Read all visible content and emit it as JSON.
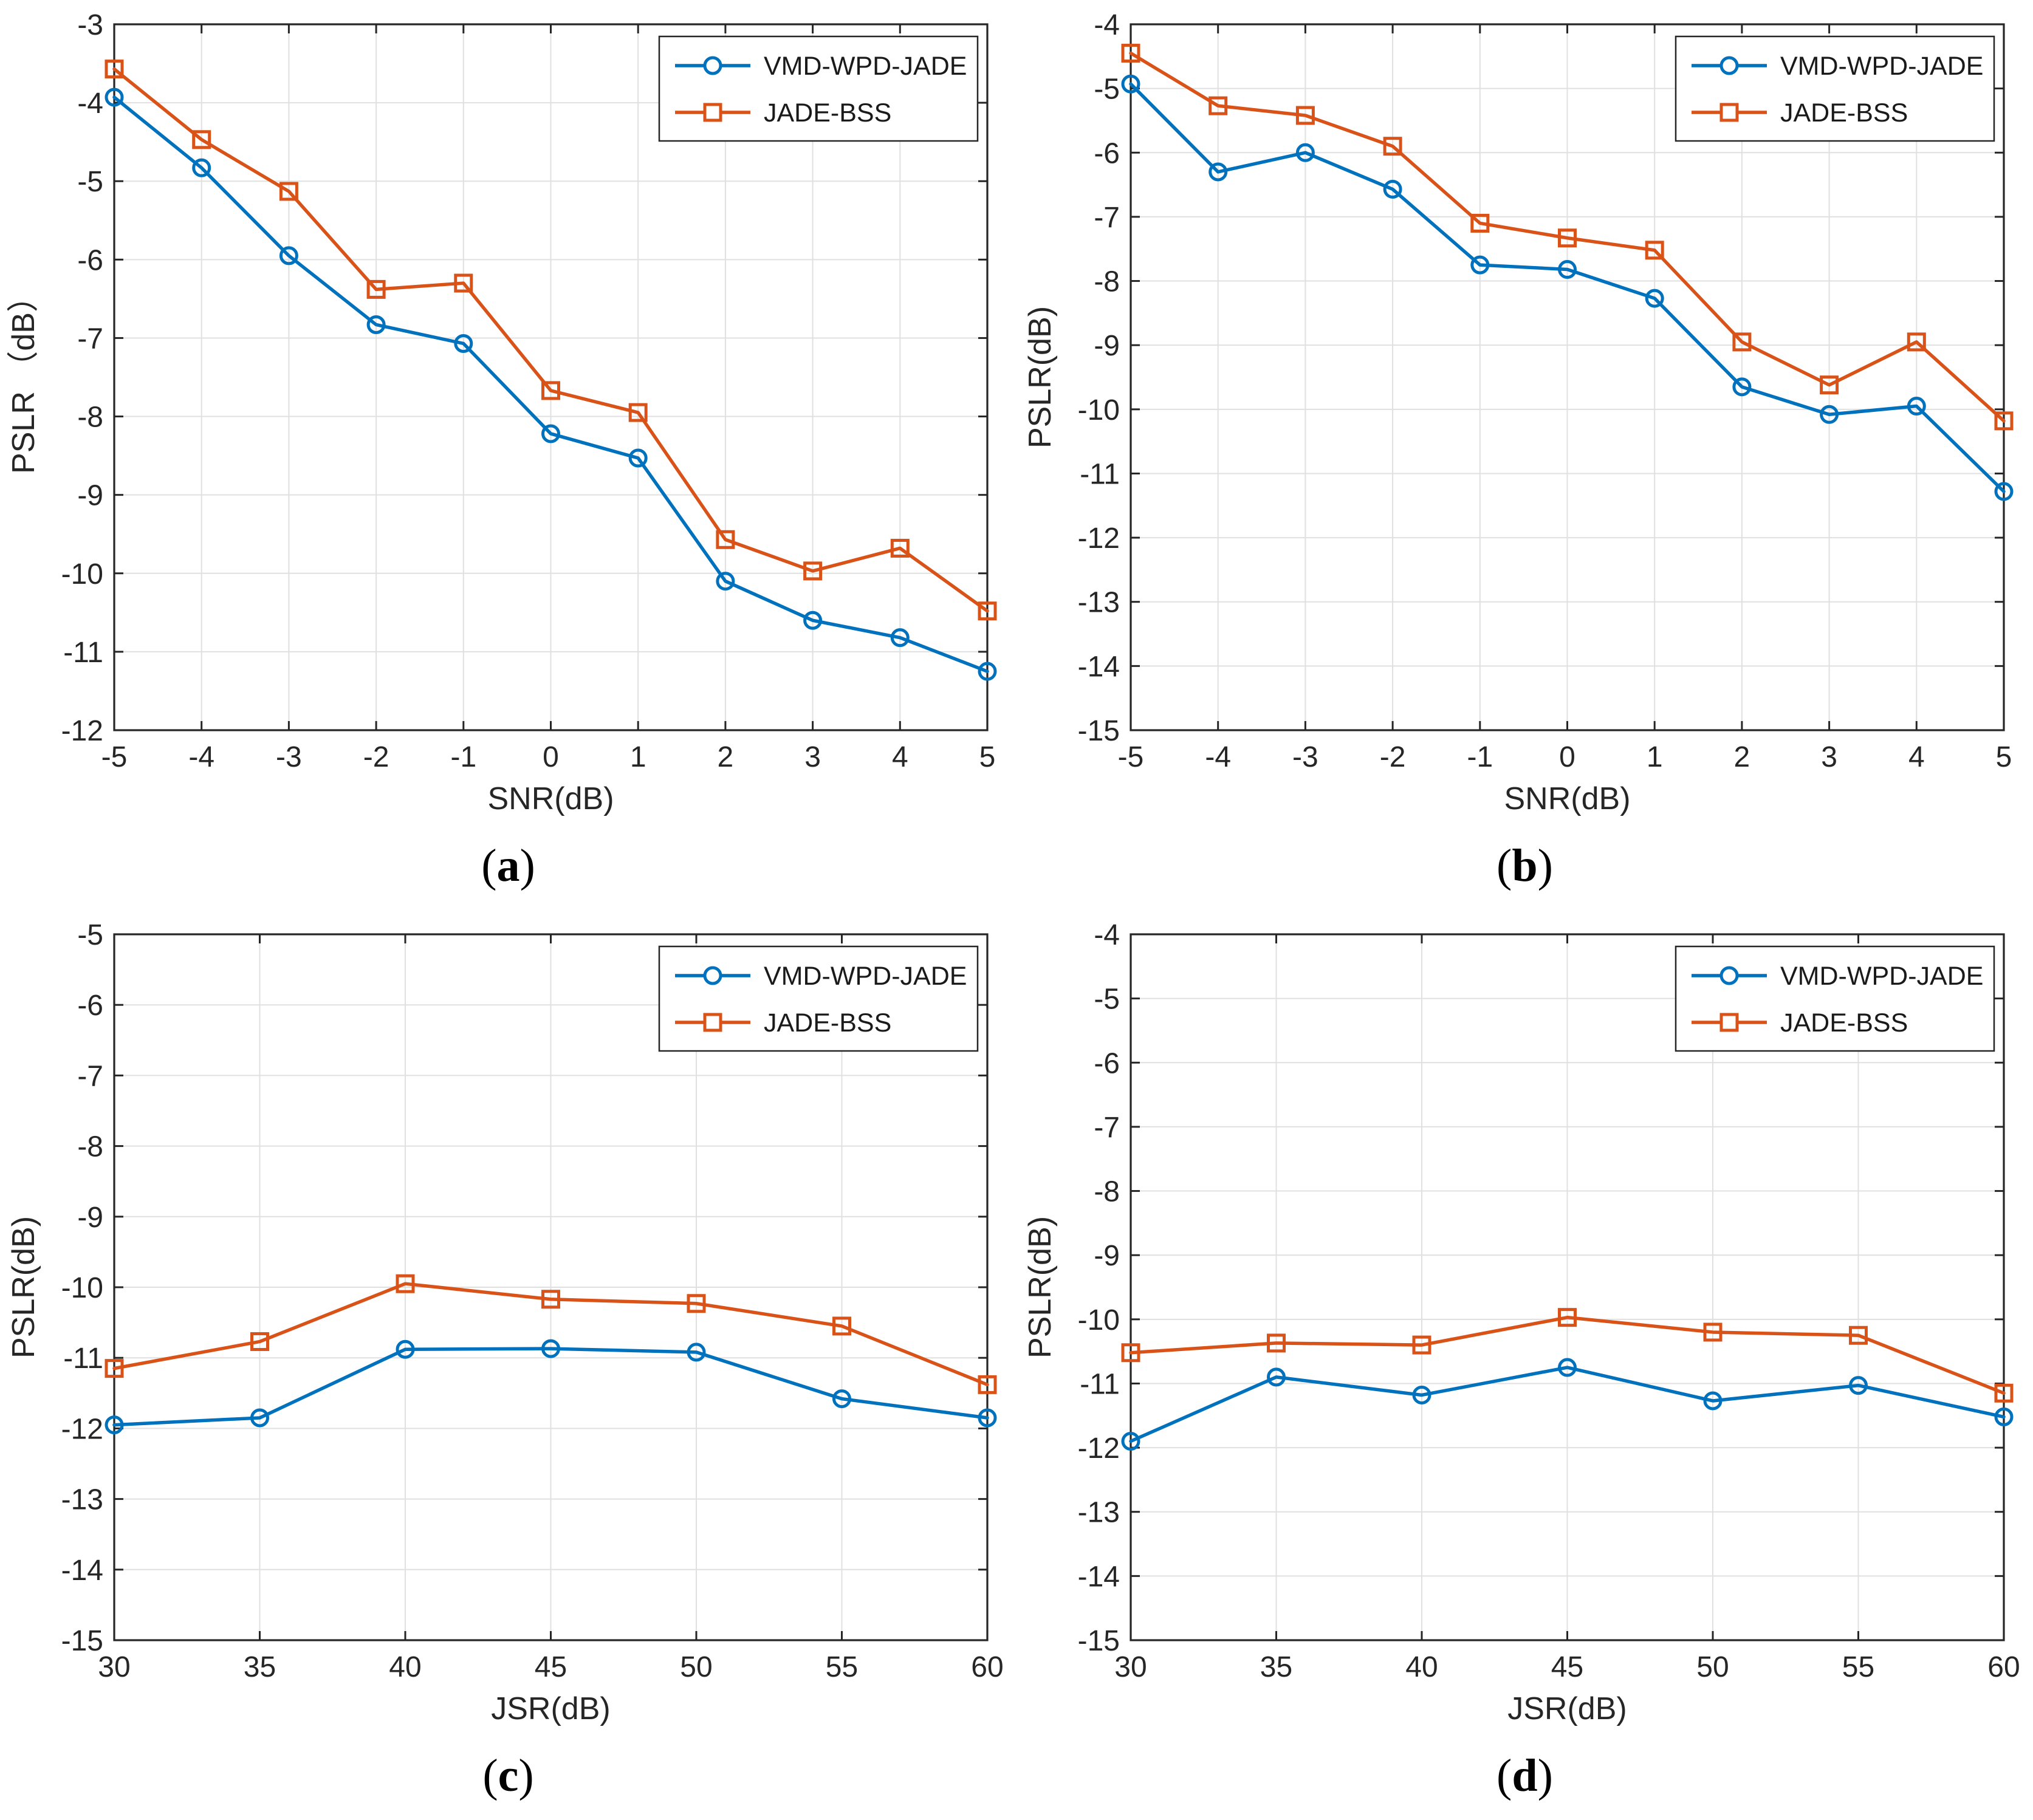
{
  "figure": {
    "background": "#ffffff",
    "axis_color": "#262626",
    "grid_color": "#e0e0e0",
    "tick_color": "#262626",
    "legend_text_color": "#1a1a1a",
    "series_palette": {
      "vmd_blue": "#0072BD",
      "jade_orange": "#D95319"
    }
  },
  "chart_data": [
    {
      "type": "line",
      "caption_open": "(",
      "caption_letter": "a",
      "caption_close": ")",
      "xlabel": "SNR(dB)",
      "ylabel": "PSLR （dB）",
      "grid": true,
      "legend_position": "top-right",
      "xlim": [
        -5,
        5
      ],
      "ylim": [
        -12,
        -3
      ],
      "xticks": [
        -5,
        -4,
        -3,
        -2,
        -1,
        0,
        1,
        2,
        3,
        4,
        5
      ],
      "yticks": [
        -12,
        -11,
        -10,
        -9,
        -8,
        -7,
        -6,
        -5,
        -4,
        -3
      ],
      "x": [
        -5,
        -4,
        -3,
        -2,
        -1,
        0,
        1,
        2,
        3,
        4,
        5
      ],
      "series": [
        {
          "name": "VMD-WPD-JADE",
          "color": "#0072BD",
          "marker": "circle",
          "values": [
            -3.93,
            -4.83,
            -5.95,
            -6.83,
            -7.07,
            -8.22,
            -8.53,
            -10.1,
            -10.6,
            -10.82,
            -11.25
          ]
        },
        {
          "name": "JADE-BSS",
          "color": "#D95319",
          "marker": "square",
          "values": [
            -3.57,
            -4.47,
            -5.13,
            -6.38,
            -6.3,
            -7.67,
            -7.95,
            -9.57,
            -9.97,
            -9.68,
            -10.48
          ]
        }
      ]
    },
    {
      "type": "line",
      "caption_open": "(",
      "caption_letter": "b",
      "caption_close": ")",
      "xlabel": "SNR(dB)",
      "ylabel": "PSLR(dB)",
      "grid": true,
      "legend_position": "top-right",
      "xlim": [
        -5,
        5
      ],
      "ylim": [
        -15,
        -4
      ],
      "xticks": [
        -5,
        -4,
        -3,
        -2,
        -1,
        0,
        1,
        2,
        3,
        4,
        5
      ],
      "yticks": [
        -15,
        -14,
        -13,
        -12,
        -11,
        -10,
        -9,
        -8,
        -7,
        -6,
        -5,
        -4
      ],
      "x": [
        -5,
        -4,
        -3,
        -2,
        -1,
        0,
        1,
        2,
        3,
        4,
        5
      ],
      "series": [
        {
          "name": "VMD-WPD-JADE",
          "color": "#0072BD",
          "marker": "circle",
          "values": [
            -4.93,
            -6.3,
            -6.0,
            -6.57,
            -7.75,
            -7.82,
            -8.27,
            -9.65,
            -10.08,
            -9.95,
            -11.28
          ]
        },
        {
          "name": "JADE-BSS",
          "color": "#D95319",
          "marker": "square",
          "values": [
            -4.45,
            -5.27,
            -5.42,
            -5.9,
            -7.1,
            -7.33,
            -7.52,
            -8.95,
            -9.62,
            -8.95,
            -10.18
          ]
        }
      ]
    },
    {
      "type": "line",
      "caption_open": "(",
      "caption_letter": "c",
      "caption_close": ")",
      "xlabel": "JSR(dB)",
      "ylabel": "PSLR(dB)",
      "grid": true,
      "legend_position": "top-right",
      "xlim": [
        30,
        60
      ],
      "ylim": [
        -15,
        -5
      ],
      "xticks": [
        30,
        35,
        40,
        45,
        50,
        55,
        60
      ],
      "yticks": [
        -15,
        -14,
        -13,
        -12,
        -11,
        -10,
        -9,
        -8,
        -7,
        -6,
        -5
      ],
      "x": [
        30,
        35,
        40,
        45,
        50,
        55,
        60
      ],
      "series": [
        {
          "name": "VMD-WPD-JADE",
          "color": "#0072BD",
          "marker": "circle",
          "values": [
            -11.95,
            -11.85,
            -10.88,
            -10.87,
            -10.92,
            -11.58,
            -11.85
          ]
        },
        {
          "name": "JADE-BSS",
          "color": "#D95319",
          "marker": "square",
          "values": [
            -11.15,
            -10.77,
            -9.95,
            -10.17,
            -10.23,
            -10.55,
            -11.38
          ]
        }
      ]
    },
    {
      "type": "line",
      "caption_open": "(",
      "caption_letter": "d",
      "caption_close": ")",
      "xlabel": "JSR(dB)",
      "ylabel": "PSLR(dB)",
      "grid": true,
      "legend_position": "top-right",
      "xlim": [
        30,
        60
      ],
      "ylim": [
        -15,
        -4
      ],
      "xticks": [
        30,
        35,
        40,
        45,
        50,
        55,
        60
      ],
      "yticks": [
        -15,
        -14,
        -13,
        -12,
        -11,
        -10,
        -9,
        -8,
        -7,
        -6,
        -5,
        -4
      ],
      "x": [
        30,
        35,
        40,
        45,
        50,
        55,
        60
      ],
      "series": [
        {
          "name": "VMD-WPD-JADE",
          "color": "#0072BD",
          "marker": "circle",
          "values": [
            -11.9,
            -10.9,
            -11.18,
            -10.75,
            -11.27,
            -11.03,
            -11.52
          ]
        },
        {
          "name": "JADE-BSS",
          "color": "#D95319",
          "marker": "square",
          "values": [
            -10.52,
            -10.37,
            -10.4,
            -9.97,
            -10.2,
            -10.25,
            -11.15
          ]
        }
      ]
    }
  ]
}
